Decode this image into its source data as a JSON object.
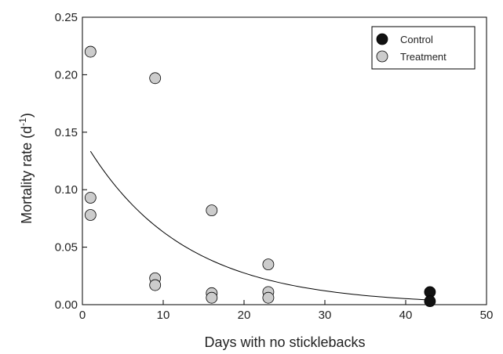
{
  "chart_data": {
    "type": "scatter",
    "title": "",
    "xlabel": "Days with no sticklebacks",
    "ylabel": "Mortality rate (d",
    "ylabel_superscript": "-1",
    "ylabel_suffix": ")",
    "xlim": [
      0,
      50
    ],
    "ylim": [
      0,
      0.25
    ],
    "x_ticks": [
      "0",
      "10",
      "20",
      "30",
      "40",
      "50"
    ],
    "y_ticks": [
      "0.00",
      "0.05",
      "0.10",
      "0.15",
      "0.20",
      "0.25"
    ],
    "grid": false,
    "legend_position": "top-right",
    "series": [
      {
        "name": "Control",
        "color": "#111111",
        "x": [
          43,
          43
        ],
        "y": [
          0.011,
          0.003
        ]
      },
      {
        "name": "Treatment",
        "color": "#cccccc",
        "x": [
          1,
          1,
          1,
          9,
          9,
          9,
          16,
          16,
          16,
          23,
          23,
          23
        ],
        "y": [
          0.22,
          0.093,
          0.078,
          0.197,
          0.023,
          0.017,
          0.082,
          0.01,
          0.006,
          0.035,
          0.011,
          0.006
        ]
      }
    ],
    "fit_curve": {
      "type": "exponential",
      "x_start": 1,
      "x_end": 43,
      "a": 0.145,
      "b": -0.083,
      "color": "#000000"
    }
  }
}
